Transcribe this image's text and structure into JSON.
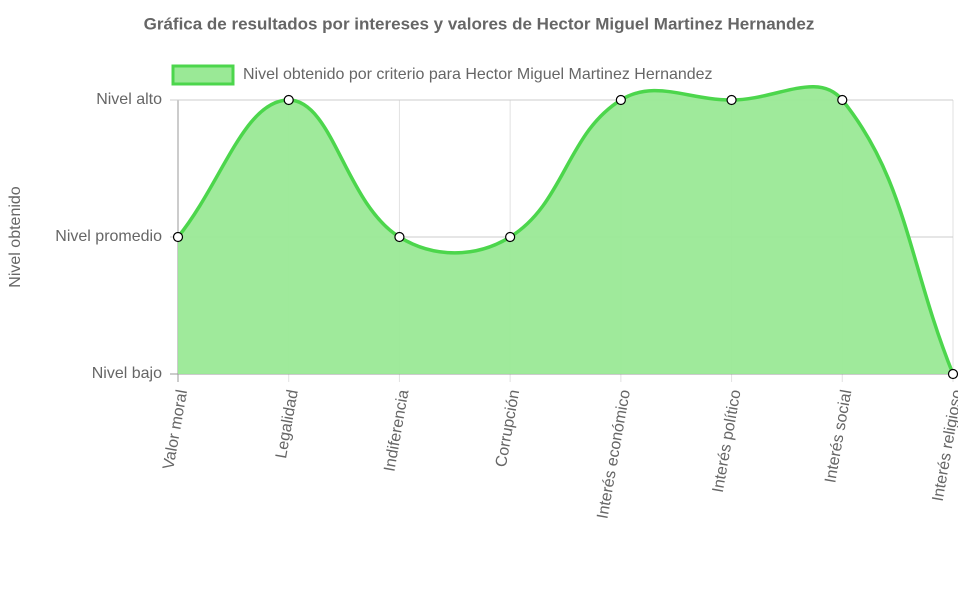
{
  "chart_data": {
    "type": "area",
    "title": "Gráfica de resultados por intereses y valores de Hector Miguel Martinez Hernandez",
    "y_label": "Nivel obtenido",
    "categories": [
      "Valor moral",
      "Legalidad",
      "Indiferencia",
      "Corrupción",
      "Interés económico",
      "Interés político",
      "Interés social",
      "Interés religioso"
    ],
    "series": [
      {
        "name": "Nivel obtenido por criterio para Hector Miguel Martinez Hernandez",
        "color": "#4cd64c",
        "fill_color": "#9ae996",
        "values": [
          2,
          3,
          2,
          2,
          3,
          3,
          3,
          1
        ]
      }
    ],
    "ylim": [
      1,
      3
    ],
    "yticks": [
      {
        "value": 1,
        "label": "Nivel bajo"
      },
      {
        "value": 2,
        "label": "Nivel promedio"
      },
      {
        "value": 3,
        "label": "Nivel alto"
      }
    ],
    "grid": true,
    "legend": "top"
  }
}
